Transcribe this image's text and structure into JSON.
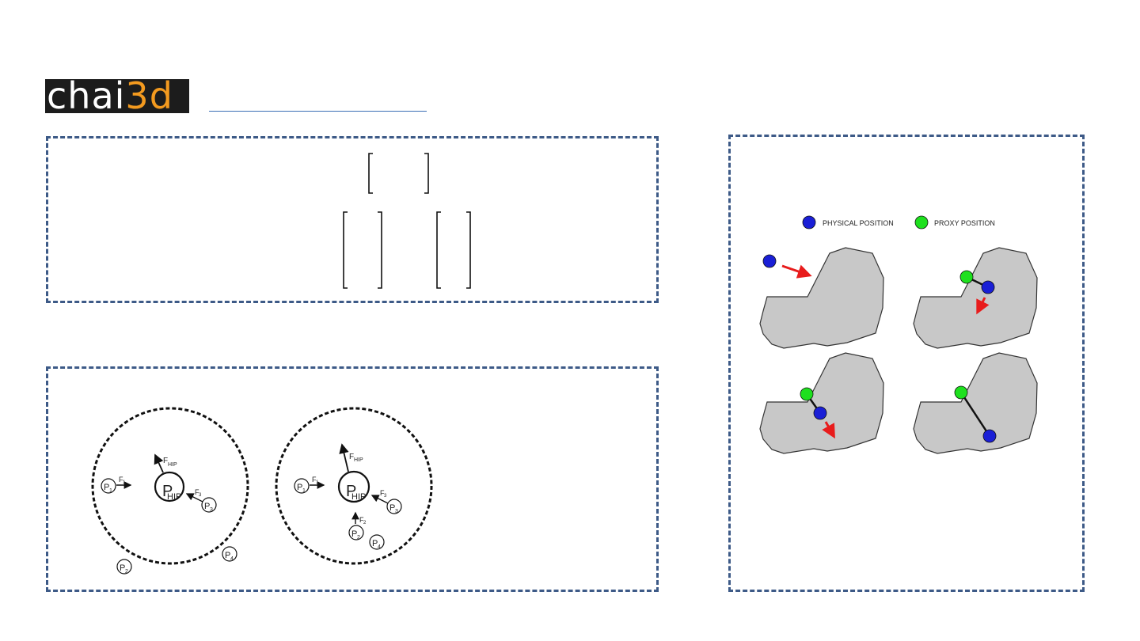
{
  "logo": {
    "part1": "chai",
    "part2": "3d",
    "part3": "d"
  },
  "colors": {
    "panel_border": "#3d5a87",
    "physical": "#1a1fd6",
    "proxy": "#1ee01e",
    "arrow": "#e81c1c",
    "shape": "#c8c8c8"
  },
  "hip_diagram": {
    "left": {
      "fhip": "F",
      "fhip_sub": "HIP",
      "center": "P",
      "center_sub": "HIP",
      "p1": "P",
      "p1_sub": "1",
      "f1": "F",
      "f1_sub": "1",
      "p3": "P",
      "p3_sub": "3",
      "f3": "F",
      "f3_sub": "3",
      "p2": "P",
      "p2_sub": "2",
      "p4": "P",
      "p4_sub": "4"
    },
    "right": {
      "fhip": "F",
      "fhip_sub": "HIP",
      "center": "P",
      "center_sub": "HIP",
      "p1": "P",
      "p1_sub": "1",
      "f1": "F",
      "f1_sub": "1",
      "p3": "P",
      "p3_sub": "3",
      "f3": "F",
      "f3_sub": "3",
      "p2": "P",
      "p2_sub": "2",
      "f2": "F",
      "f2_sub": "2",
      "p4": "P",
      "p4_sub": "4"
    }
  },
  "proxy_diagram": {
    "legend_physical": "PHYSICAL POSITION",
    "legend_proxy": "PROXY POSITION",
    "physical_icon": "blue-dot-icon",
    "proxy_icon": "green-dot-icon"
  }
}
